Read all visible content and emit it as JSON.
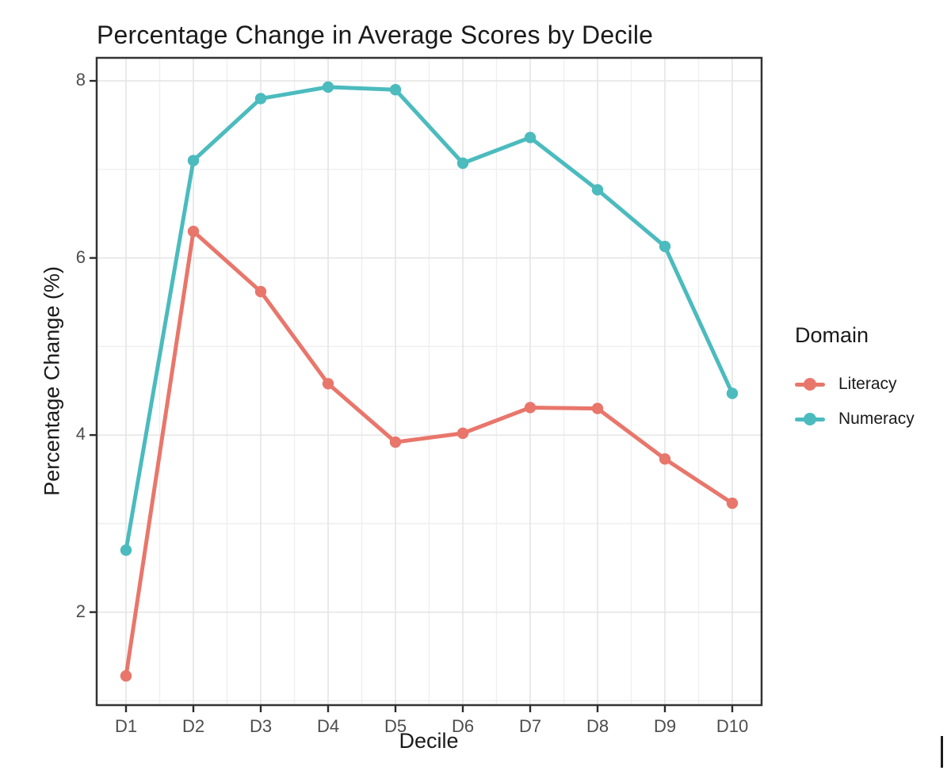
{
  "chart_data": {
    "type": "line",
    "title": "Percentage Change in Average Scores by Decile",
    "xlabel": "Decile",
    "ylabel": "Percentage Change (%)",
    "categories": [
      "D1",
      "D2",
      "D3",
      "D4",
      "D5",
      "D6",
      "D7",
      "D8",
      "D9",
      "D10"
    ],
    "series": [
      {
        "name": "Literacy",
        "color": "#E9766B",
        "values": [
          1.28,
          6.3,
          5.62,
          4.58,
          3.92,
          4.02,
          4.31,
          4.3,
          3.73,
          3.23
        ]
      },
      {
        "name": "Numeracy",
        "color": "#4BBBBE",
        "values": [
          2.7,
          7.1,
          7.8,
          7.93,
          7.9,
          7.07,
          7.36,
          6.77,
          6.13,
          4.47
        ]
      }
    ],
    "y_ticks": [
      2,
      4,
      6,
      8
    ],
    "y_minor_gridlines": [
      1,
      3,
      5,
      7
    ],
    "ylim": [
      0.95,
      8.26
    ],
    "grid": true,
    "legend": {
      "title": "Domain",
      "position": "right"
    },
    "colors": {
      "grid_major": "#E5E5E5",
      "grid_minor": "#EFEFEF",
      "panel_border": "#333333",
      "tick_mark": "#2b2b2b",
      "tick_text": "#4d4d4d",
      "text": "#1a1a1a"
    }
  }
}
